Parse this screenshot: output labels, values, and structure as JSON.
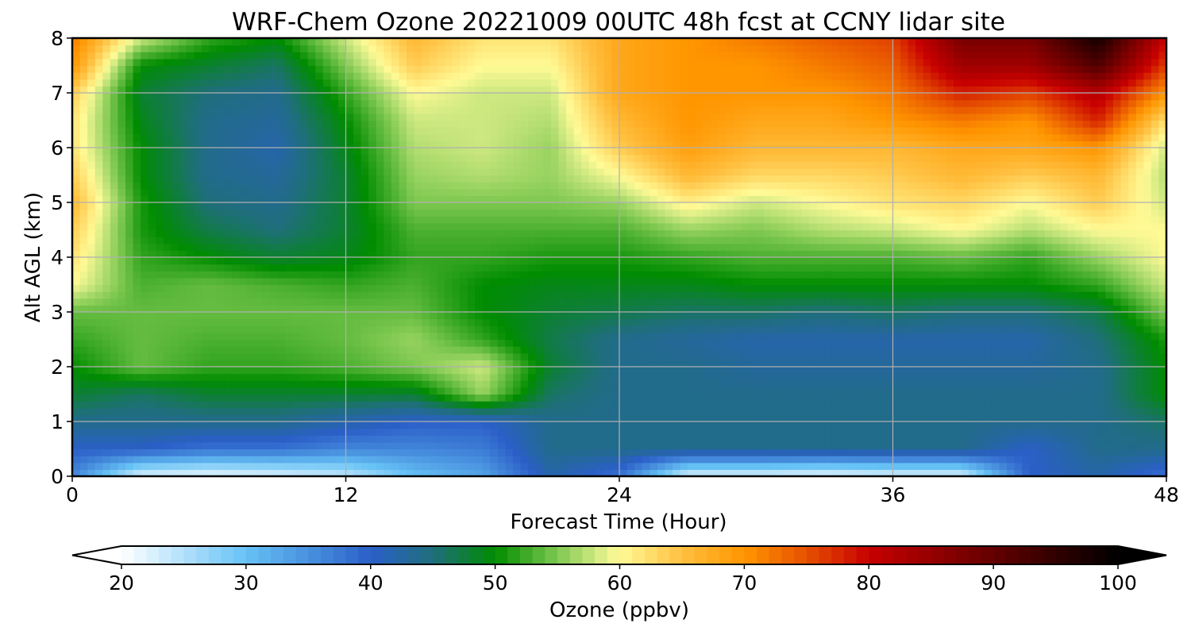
{
  "chart_data": {
    "type": "heatmap",
    "title": "WRF-Chem Ozone  20221009 00UTC 48h fcst at CCNY lidar site",
    "xlabel": "Forecast Time (Hour)",
    "ylabel": "Alt AGL (km)",
    "xlim": [
      0,
      48
    ],
    "ylim": [
      0,
      8
    ],
    "xticks": [
      0,
      12,
      24,
      36,
      48
    ],
    "yticks": [
      0,
      1,
      2,
      3,
      4,
      5,
      6,
      7,
      8
    ],
    "grid": true,
    "x": [
      0,
      3,
      6,
      9,
      12,
      15,
      18,
      21,
      24,
      27,
      30,
      33,
      36,
      39,
      42,
      45,
      48
    ],
    "y": [
      0,
      0.5,
      1,
      1.5,
      2,
      2.5,
      3,
      3.5,
      4,
      4.5,
      5,
      5.5,
      6,
      6.5,
      7,
      7.5,
      8
    ],
    "values": [
      [
        36,
        22,
        21,
        22,
        24,
        30,
        33,
        42,
        38,
        22,
        22,
        21,
        22,
        22,
        40,
        42,
        38
      ],
      [
        40,
        40,
        38,
        38,
        36,
        36,
        37,
        44,
        44,
        44,
        44,
        44,
        44,
        44,
        40,
        44,
        44
      ],
      [
        44,
        44,
        44,
        44,
        42,
        40,
        40,
        44,
        44,
        44,
        44,
        44,
        44,
        44,
        44,
        44,
        46
      ],
      [
        48,
        46,
        48,
        48,
        48,
        48,
        56,
        46,
        44,
        44,
        44,
        44,
        44,
        44,
        44,
        44,
        50
      ],
      [
        50,
        54,
        52,
        52,
        53,
        55,
        58,
        48,
        44,
        44,
        43,
        43,
        43,
        43,
        43,
        44,
        50
      ],
      [
        52,
        54,
        53,
        53,
        54,
        56,
        52,
        47,
        44,
        43,
        42,
        42,
        42,
        42,
        42,
        45,
        51
      ],
      [
        54,
        54,
        54,
        54,
        54,
        54,
        50,
        48,
        47,
        46,
        46,
        45,
        46,
        45,
        45,
        47,
        55
      ],
      [
        60,
        53,
        54,
        53,
        52,
        53,
        50,
        49,
        49,
        49,
        50,
        50,
        50,
        50,
        50,
        52,
        58
      ],
      [
        62,
        52,
        50,
        48,
        49,
        52,
        52,
        51,
        51,
        52,
        53,
        53,
        53,
        54,
        52,
        56,
        60
      ],
      [
        64,
        51,
        47,
        45,
        48,
        53,
        53,
        53,
        53,
        56,
        55,
        57,
        58,
        60,
        57,
        60,
        60
      ],
      [
        66,
        51,
        45,
        44,
        48,
        55,
        55,
        55,
        56,
        61,
        58,
        60,
        62,
        63,
        60,
        64,
        58
      ],
      [
        64,
        50,
        44,
        43,
        48,
        56,
        57,
        56,
        60,
        66,
        63,
        63,
        64,
        66,
        64,
        66,
        57
      ],
      [
        62,
        50,
        44,
        42,
        49,
        57,
        58,
        56,
        64,
        69,
        66,
        66,
        66,
        68,
        68,
        70,
        58
      ],
      [
        62,
        49,
        44,
        43,
        50,
        58,
        58,
        57,
        66,
        70,
        68,
        68,
        70,
        72,
        70,
        78,
        62
      ],
      [
        64,
        48,
        45,
        44,
        52,
        60,
        58,
        58,
        68,
        70,
        70,
        70,
        72,
        78,
        76,
        82,
        70
      ],
      [
        70,
        50,
        48,
        46,
        55,
        64,
        60,
        60,
        68,
        70,
        70,
        72,
        74,
        84,
        84,
        92,
        76
      ],
      [
        72,
        58,
        52,
        50,
        58,
        66,
        62,
        62,
        68,
        70,
        72,
        74,
        76,
        88,
        88,
        98,
        80
      ]
    ],
    "colorbar": {
      "label": "Ozone  (ppbv)",
      "min": 20,
      "max": 100,
      "ticks": [
        20,
        30,
        40,
        50,
        60,
        70,
        80,
        90,
        100
      ],
      "extend": "both",
      "colorscale": [
        [
          20,
          "#ffffff"
        ],
        [
          30,
          "#66c2f5"
        ],
        [
          40,
          "#2b5fc8"
        ],
        [
          45,
          "#1f6e7c"
        ],
        [
          50,
          "#008c00"
        ],
        [
          55,
          "#7ec850"
        ],
        [
          58,
          "#cde880"
        ],
        [
          60,
          "#fffa96"
        ],
        [
          65,
          "#ffc040"
        ],
        [
          70,
          "#ff9600"
        ],
        [
          75,
          "#e65000"
        ],
        [
          80,
          "#c80000"
        ],
        [
          90,
          "#640000"
        ],
        [
          100,
          "#000000"
        ]
      ]
    }
  }
}
